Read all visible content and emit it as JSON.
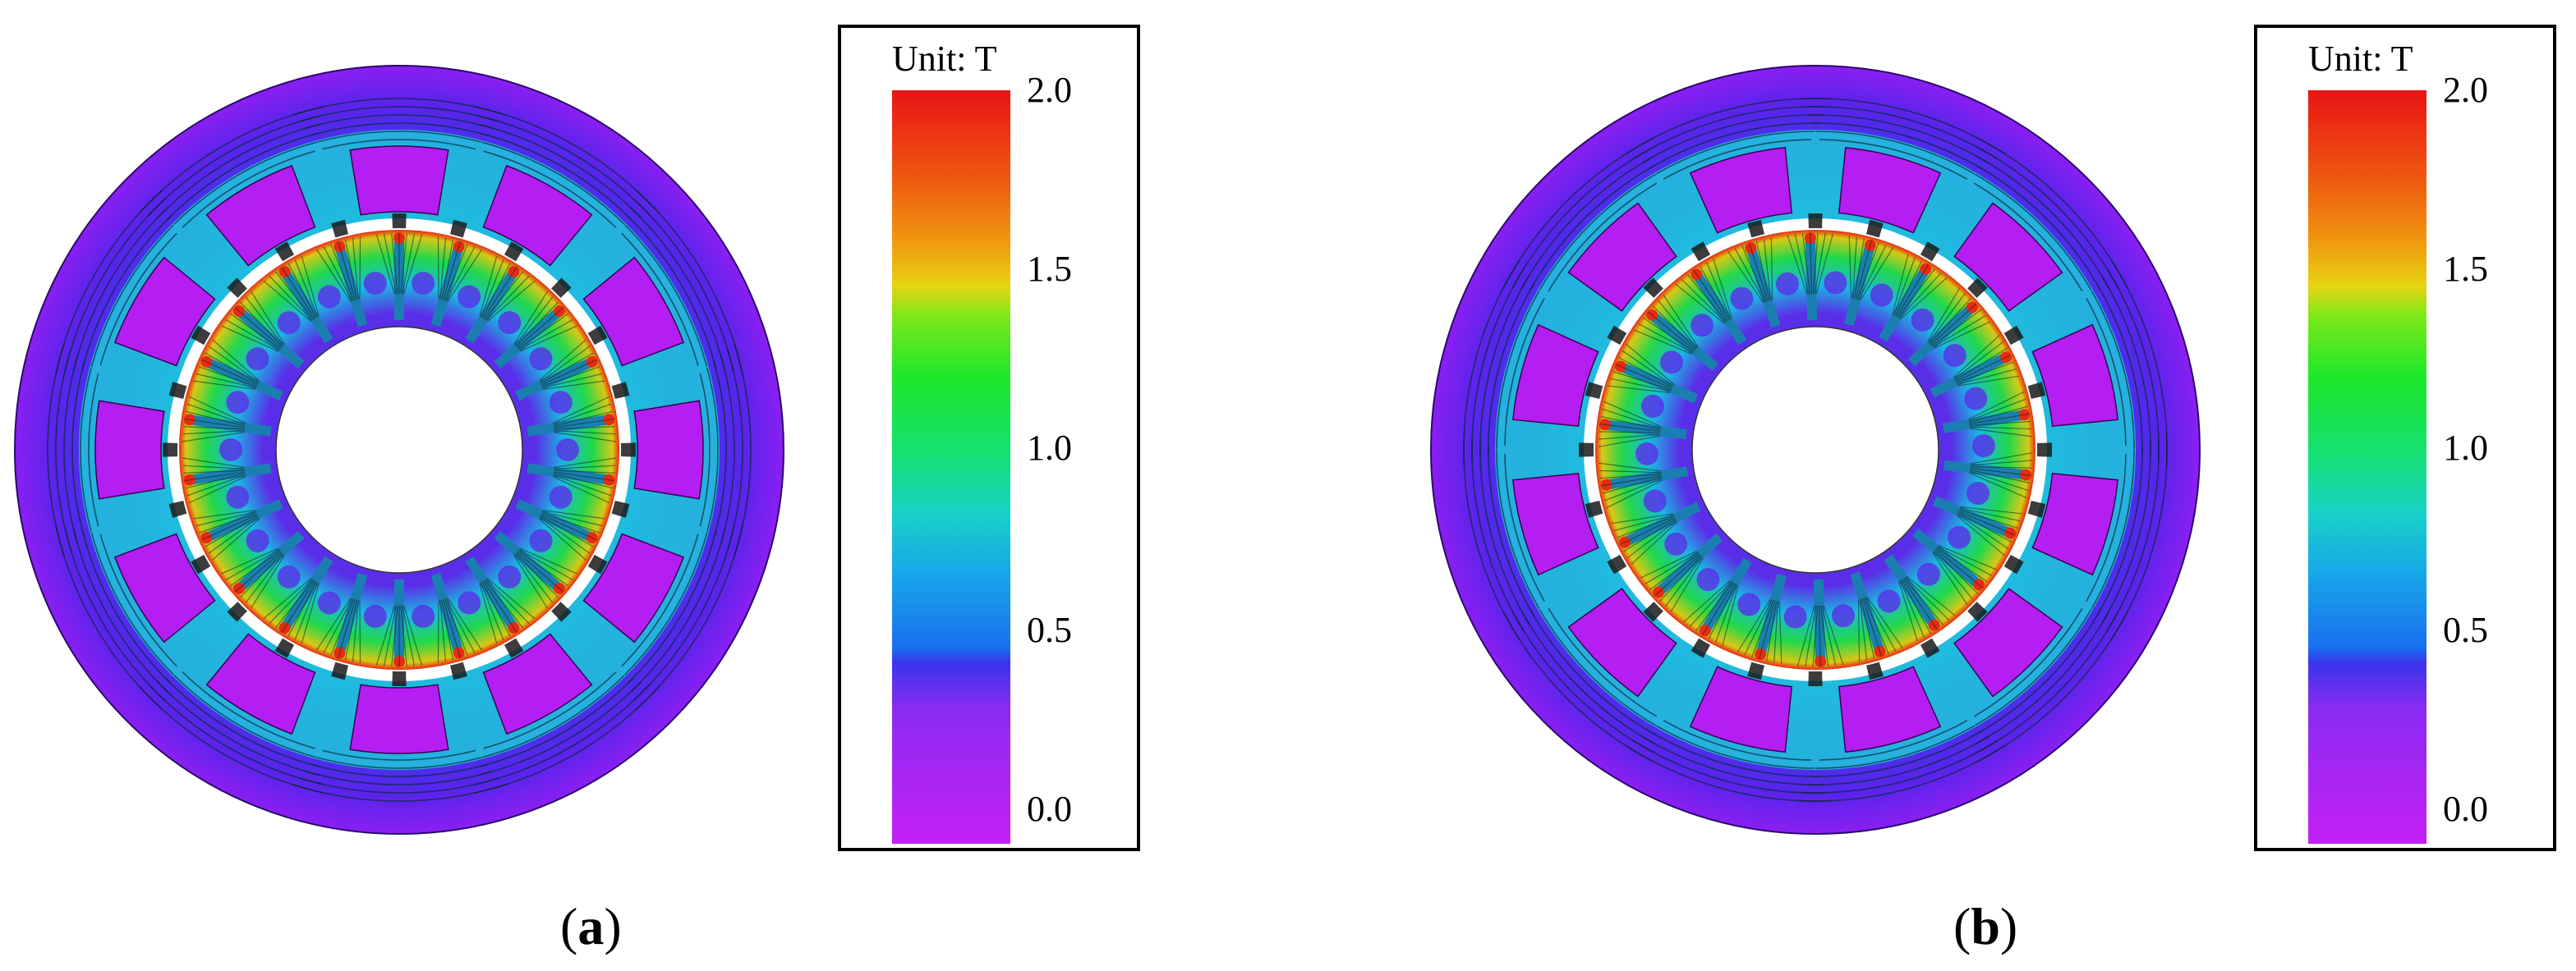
{
  "panels": [
    {
      "id": "a",
      "caption_letter": "a",
      "legend": {
        "unit": "Unit: T",
        "ticks": [
          "2.0",
          "1.5",
          "1.0",
          "0.5",
          "0.0"
        ]
      }
    },
    {
      "id": "b",
      "caption_letter": "b",
      "legend": {
        "unit": "Unit: T",
        "ticks": [
          "2.0",
          "1.5",
          "1.0",
          "0.5",
          "0.0"
        ]
      }
    }
  ],
  "colors": {
    "outer_yoke": "#4a22e6",
    "outer_yoke_dark": "#7a1ff0",
    "slot_magenta": "#b01ef0",
    "tooth_cyan": "#1fd6d6",
    "rotor_green": "#22d23a",
    "rotor_red": "#e82020",
    "bore_white": "#ffffff"
  },
  "colorbar": {
    "min": 0.0,
    "max": 2.0,
    "stops": [
      "#c21ff5",
      "#7a2ef0",
      "#3b3bee",
      "#1b8ff0",
      "#16c8d6",
      "#18e07a",
      "#26e826",
      "#9be818",
      "#f0d010",
      "#f08a10",
      "#ee3a10",
      "#e81010"
    ]
  }
}
